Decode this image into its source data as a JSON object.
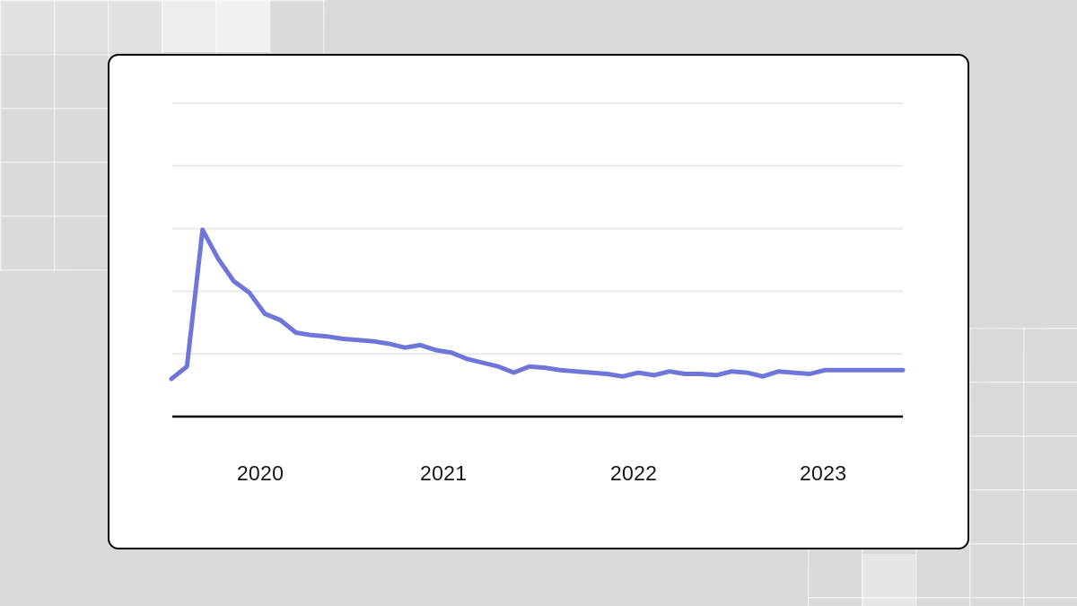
{
  "chart_data": {
    "type": "line",
    "title": "",
    "x_tick_labels": [
      "2020",
      "2021",
      "2022",
      "2023"
    ],
    "x": [
      "2020-01",
      "2020-02",
      "2020-03",
      "2020-04",
      "2020-05",
      "2020-06",
      "2020-07",
      "2020-08",
      "2020-09",
      "2020-10",
      "2020-11",
      "2020-12",
      "2021-01",
      "2021-02",
      "2021-03",
      "2021-04",
      "2021-05",
      "2021-06",
      "2021-07",
      "2021-08",
      "2021-09",
      "2021-10",
      "2021-11",
      "2021-12",
      "2022-01",
      "2022-02",
      "2022-03",
      "2022-04",
      "2022-05",
      "2022-06",
      "2022-07",
      "2022-08",
      "2022-09",
      "2022-10",
      "2022-11",
      "2022-12",
      "2023-01",
      "2023-02",
      "2023-03",
      "2023-04",
      "2023-05",
      "2023-06",
      "2023-07",
      "2023-08",
      "2023-09",
      "2023-10",
      "2023-11",
      "2023-12"
    ],
    "series": [
      {
        "name": "main-line",
        "color": "#6f76d9",
        "values": [
          3.0,
          4.0,
          14.9,
          12.6,
          10.8,
          9.9,
          8.2,
          7.7,
          6.7,
          6.5,
          6.4,
          6.2,
          6.1,
          6.0,
          5.8,
          5.5,
          5.7,
          5.3,
          5.1,
          4.6,
          4.3,
          4.0,
          3.5,
          4.0,
          3.9,
          3.7,
          3.6,
          3.5,
          3.4,
          3.2,
          3.5,
          3.3,
          3.6,
          3.4,
          3.4,
          3.3,
          3.6,
          3.5,
          3.2,
          3.6,
          3.5,
          3.4,
          3.7,
          3.7,
          3.7,
          3.7,
          3.7,
          3.7
        ]
      }
    ],
    "xlabel": "",
    "ylabel": "",
    "ylim": [
      0,
      25.2
    ],
    "y_gridlines": [
      5,
      10,
      15,
      20,
      25
    ],
    "y_tick_labels_visible": false,
    "grid": "horizontal",
    "legend": "none",
    "baseline_value": 0
  },
  "colors": {
    "page_background": "#d8dada",
    "card_background": "#ffffff",
    "card_border": "#000000",
    "gridline": "#e9e9e9",
    "axis_baseline": "#000000",
    "line": "#6f76d9",
    "tick_label": "#161616"
  }
}
